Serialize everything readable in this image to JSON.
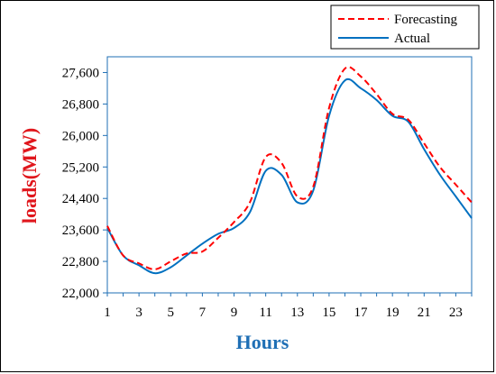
{
  "chart_data": {
    "type": "line",
    "xlabel": "Hours",
    "ylabel": "loads(MW)",
    "xlim": [
      1,
      24
    ],
    "ylim": [
      22000,
      28000
    ],
    "x_ticks": [
      1,
      3,
      5,
      7,
      9,
      11,
      13,
      15,
      17,
      19,
      21,
      23
    ],
    "y_ticks": [
      22000,
      22800,
      23600,
      24400,
      25200,
      26000,
      26800,
      27600
    ],
    "y_tick_labels": [
      "22,000",
      "22,800",
      "23,600",
      "24,400",
      "25,200",
      "26,000",
      "26,800",
      "27,600"
    ],
    "grid": false,
    "legend_position": "top-right",
    "x": [
      1,
      2,
      3,
      4,
      5,
      6,
      7,
      8,
      9,
      10,
      11,
      12,
      13,
      14,
      15,
      16,
      17,
      18,
      19,
      20,
      21,
      22,
      23,
      24
    ],
    "series": [
      {
        "name": "Forecasting",
        "color": "#ff0000",
        "line_style": "dashed",
        "values": [
          23700,
          22950,
          22750,
          22600,
          22800,
          23000,
          23050,
          23400,
          23800,
          24300,
          25450,
          25300,
          24450,
          24700,
          26700,
          27700,
          27500,
          27050,
          26550,
          26400,
          25800,
          25200,
          24750,
          24300
        ]
      },
      {
        "name": "Actual",
        "color": "#0070c0",
        "line_style": "solid",
        "values": [
          23650,
          22950,
          22700,
          22500,
          22650,
          22950,
          23250,
          23500,
          23650,
          24050,
          25100,
          25000,
          24300,
          24600,
          26500,
          27400,
          27200,
          26900,
          26500,
          26350,
          25650,
          25000,
          24450,
          23900
        ]
      }
    ]
  }
}
